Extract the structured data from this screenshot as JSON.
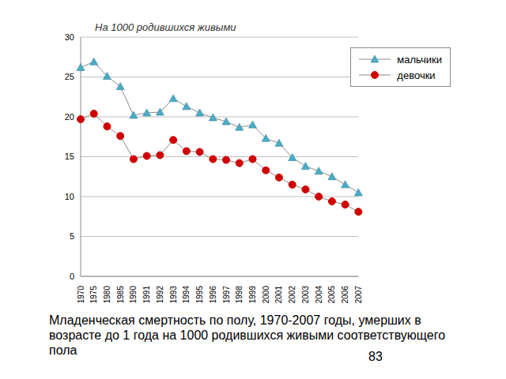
{
  "chart_data": {
    "type": "line",
    "subtitle": "На 1000 родившихся живыми",
    "caption": "Младенческая смертность по полу, 1970-2007 годы, умерших в возрасте до 1 года на 1000 родившихся живыми соответствующего пола",
    "page_number": "83",
    "categories": [
      "1970",
      "1975",
      "1980",
      "1985",
      "1990",
      "1991",
      "1992",
      "1993",
      "1994",
      "1995",
      "1996",
      "1997",
      "1998",
      "1999",
      "2000",
      "2001",
      "2002",
      "2003",
      "2004",
      "2005",
      "2006",
      "2007"
    ],
    "series": [
      {
        "name": "мальчики",
        "color": "#4bacc6",
        "marker": "triangle",
        "values": [
          26.2,
          26.9,
          25.1,
          23.8,
          20.2,
          20.5,
          20.6,
          22.3,
          21.3,
          20.5,
          19.9,
          19.4,
          18.7,
          19.0,
          17.3,
          16.7,
          14.9,
          13.8,
          13.2,
          12.5,
          11.5,
          10.5
        ]
      },
      {
        "name": "девочки",
        "color": "#d00000",
        "marker": "circle",
        "values": [
          19.7,
          20.4,
          18.8,
          17.6,
          14.7,
          15.1,
          15.2,
          17.1,
          15.7,
          15.6,
          14.7,
          14.6,
          14.2,
          14.7,
          13.3,
          12.4,
          11.5,
          10.9,
          10.0,
          9.4,
          9.0,
          8.1
        ]
      }
    ],
    "ylim": [
      0,
      30
    ],
    "yticks": [
      0,
      5,
      10,
      15,
      20,
      25,
      30
    ],
    "grid": true,
    "legend": "upper right"
  }
}
